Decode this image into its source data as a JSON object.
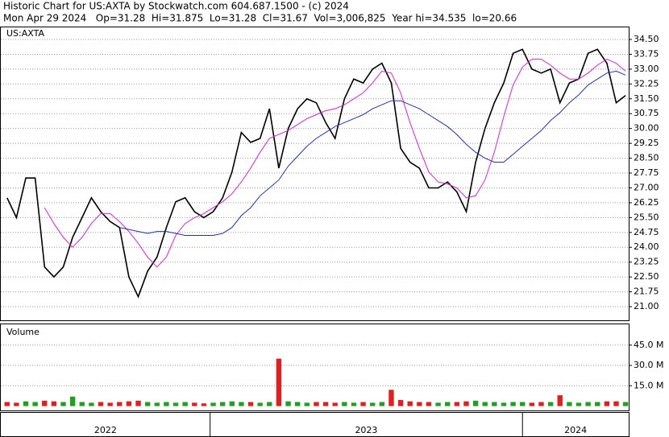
{
  "header": {
    "title": "Historic Chart for US:AXTA by Stockwatch.com 604.687.1500 - (c) 2024",
    "quote": "Mon Apr 29 2024   Op=31.28  Hi=31.875  Lo=31.28  Cl=31.67  Vol=3,006,825  Year hi=34.535  lo=20.66"
  },
  "chart_data": [
    {
      "type": "line",
      "title": "US:AXTA",
      "x": [
        2022.35,
        2022.38,
        2022.41,
        2022.44,
        2022.47,
        2022.5,
        2022.53,
        2022.56,
        2022.59,
        2022.62,
        2022.65,
        2022.68,
        2022.71,
        2022.74,
        2022.77,
        2022.8,
        2022.83,
        2022.86,
        2022.89,
        2022.92,
        2022.95,
        2022.98,
        2023.01,
        2023.04,
        2023.07,
        2023.1,
        2023.13,
        2023.16,
        2023.19,
        2023.22,
        2023.25,
        2023.28,
        2023.31,
        2023.34,
        2023.37,
        2023.4,
        2023.43,
        2023.46,
        2023.49,
        2023.52,
        2023.55,
        2023.58,
        2023.61,
        2023.64,
        2023.67,
        2023.7,
        2023.73,
        2023.76,
        2023.79,
        2023.82,
        2023.85,
        2023.88,
        2023.91,
        2023.94,
        2023.97,
        2024.0,
        2024.03,
        2024.06,
        2024.09,
        2024.12,
        2024.15,
        2024.18,
        2024.21,
        2024.24,
        2024.27,
        2024.3,
        2024.33
      ],
      "series": [
        {
          "color": "#000000",
          "values": [
            26.5,
            25.5,
            27.5,
            27.5,
            23.0,
            22.5,
            23.0,
            24.5,
            25.5,
            26.5,
            25.8,
            25.3,
            25.0,
            22.5,
            21.5,
            22.8,
            23.5,
            25.0,
            26.3,
            26.5,
            25.8,
            25.5,
            25.8,
            26.5,
            27.8,
            29.8,
            29.3,
            29.5,
            31.0,
            28.0,
            30.0,
            31.0,
            31.5,
            31.3,
            30.3,
            29.5,
            31.5,
            32.5,
            32.3,
            33.0,
            33.3,
            32.3,
            29.0,
            28.3,
            28.0,
            27.0,
            27.0,
            27.3,
            26.8,
            25.8,
            28.3,
            30.0,
            31.3,
            32.3,
            33.8,
            34.0,
            33.0,
            32.8,
            33.0,
            31.3,
            32.3,
            32.5,
            33.8,
            34.0,
            33.3,
            31.3,
            31.67
          ]
        },
        {
          "color": "#e020d8",
          "values": [
            null,
            null,
            null,
            null,
            26.0,
            25.2,
            24.5,
            24.0,
            24.5,
            25.2,
            25.7,
            25.7,
            25.3,
            24.8,
            24.2,
            23.5,
            23.0,
            23.5,
            24.6,
            25.2,
            25.5,
            25.7,
            26.0,
            26.3,
            26.7,
            27.3,
            28.0,
            28.8,
            29.5,
            29.7,
            29.9,
            30.2,
            30.5,
            30.7,
            30.9,
            31.0,
            31.2,
            31.5,
            31.8,
            32.3,
            32.9,
            32.8,
            31.8,
            30.3,
            29.0,
            27.8,
            27.3,
            27.2,
            27.0,
            26.5,
            26.6,
            27.4,
            28.8,
            30.6,
            32.2,
            33.1,
            33.5,
            33.5,
            33.2,
            32.8,
            32.5,
            32.5,
            32.8,
            33.2,
            33.5,
            33.3,
            32.9
          ]
        },
        {
          "color": "#2030c0",
          "values": [
            null,
            null,
            null,
            null,
            null,
            null,
            null,
            null,
            null,
            null,
            null,
            null,
            25.0,
            24.9,
            24.8,
            24.7,
            24.8,
            24.8,
            24.7,
            24.6,
            24.6,
            24.6,
            24.6,
            24.7,
            25.0,
            25.6,
            26.0,
            26.6,
            27.0,
            27.4,
            28.1,
            28.6,
            29.1,
            29.5,
            29.8,
            30.1,
            30.3,
            30.5,
            30.7,
            31.0,
            31.2,
            31.4,
            31.4,
            31.2,
            31.0,
            30.7,
            30.4,
            30.1,
            29.7,
            29.2,
            28.8,
            28.5,
            28.3,
            28.3,
            28.7,
            29.1,
            29.5,
            29.9,
            30.4,
            30.8,
            31.3,
            31.7,
            32.2,
            32.5,
            32.8,
            32.9,
            32.7
          ]
        }
      ],
      "xlim": [
        2022.33,
        2024.34
      ],
      "ylim": [
        20.31,
        35.11
      ],
      "yticks": [
        {
          "value": 21,
          "label": "21.00"
        },
        {
          "value": 21.75,
          "label": "21.75"
        },
        {
          "value": 22.5,
          "label": "22.50"
        },
        {
          "value": 23.25,
          "label": "23.25"
        },
        {
          "value": 24,
          "label": "24.00"
        },
        {
          "value": 24.75,
          "label": "24.75"
        },
        {
          "value": 25.5,
          "label": "25.50"
        },
        {
          "value": 26.25,
          "label": "26.25"
        },
        {
          "value": 27,
          "label": "27.00"
        },
        {
          "value": 27.75,
          "label": "27.75"
        },
        {
          "value": 28.5,
          "label": "28.50"
        },
        {
          "value": 29.25,
          "label": "29.25"
        },
        {
          "value": 30,
          "label": "30.00"
        },
        {
          "value": 30.75,
          "label": "30.75"
        },
        {
          "value": 31.5,
          "label": "31.50"
        },
        {
          "value": 32.25,
          "label": "32.25"
        },
        {
          "value": 33,
          "label": "33.00"
        },
        {
          "value": 33.75,
          "label": "33.75"
        },
        {
          "value": 34.5,
          "label": "34.50"
        }
      ],
      "grid": true
    },
    {
      "type": "bar",
      "title": "Volume",
      "x": [
        2022.35,
        2022.38,
        2022.41,
        2022.44,
        2022.47,
        2022.5,
        2022.53,
        2022.56,
        2022.59,
        2022.62,
        2022.65,
        2022.68,
        2022.71,
        2022.74,
        2022.77,
        2022.8,
        2022.83,
        2022.86,
        2022.89,
        2022.92,
        2022.95,
        2022.98,
        2023.01,
        2023.04,
        2023.07,
        2023.1,
        2023.13,
        2023.16,
        2023.19,
        2023.22,
        2023.25,
        2023.28,
        2023.31,
        2023.34,
        2023.37,
        2023.4,
        2023.43,
        2023.46,
        2023.49,
        2023.52,
        2023.55,
        2023.58,
        2023.61,
        2023.64,
        2023.67,
        2023.7,
        2023.73,
        2023.76,
        2023.79,
        2023.82,
        2023.85,
        2023.88,
        2023.91,
        2023.94,
        2023.97,
        2024.0,
        2024.03,
        2024.06,
        2024.09,
        2024.12,
        2024.15,
        2024.18,
        2024.21,
        2024.24,
        2024.27,
        2024.3,
        2024.33
      ],
      "values": [
        3.0,
        2.5,
        3.5,
        3.0,
        4.0,
        3.5,
        3.0,
        7.0,
        3.0,
        2.5,
        3.0,
        2.5,
        3.0,
        3.5,
        4.0,
        3.0,
        2.5,
        3.0,
        2.5,
        3.0,
        2.5,
        2.0,
        2.5,
        3.0,
        3.5,
        3.0,
        3.0,
        2.5,
        3.0,
        35.0,
        3.5,
        3.0,
        2.5,
        3.0,
        3.0,
        2.5,
        3.0,
        2.5,
        3.0,
        2.5,
        3.0,
        12.0,
        4.5,
        3.5,
        3.0,
        3.0,
        2.5,
        3.0,
        3.0,
        3.5,
        4.0,
        3.0,
        3.0,
        2.5,
        3.0,
        3.0,
        2.5,
        3.0,
        3.0,
        8.0,
        3.0,
        2.5,
        3.0,
        3.0,
        3.5,
        3.5,
        3.0
      ],
      "colors": [
        "#e02020",
        "#20a020"
      ],
      "xlim": [
        2022.33,
        2024.34
      ],
      "xticks": [
        2022,
        2023,
        2024
      ],
      "ylim": [
        -3.2,
        60.3
      ],
      "yticks": [
        {
          "value": 15,
          "label": "15.0 M"
        },
        {
          "value": 30,
          "label": "30.0 M"
        },
        {
          "value": 45,
          "label": "45.0 M"
        }
      ],
      "grid": true
    }
  ]
}
